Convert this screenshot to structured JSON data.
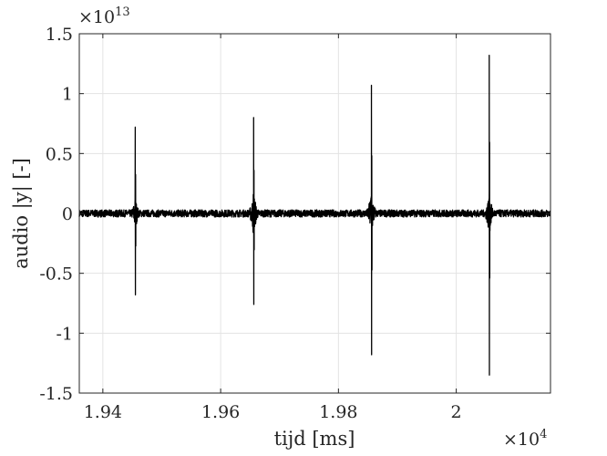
{
  "chart_data": {
    "type": "line",
    "title": "",
    "xlabel": "tijd [ms]",
    "ylabel": "audio |y| [-]",
    "xlim": [
      19360,
      20160
    ],
    "ylim": [
      -15000000000000.0,
      15000000000000.0
    ],
    "x_ticks": [
      19400,
      19600,
      19800,
      20000
    ],
    "x_tick_labels": [
      "1.94",
      "1.96",
      "1.98",
      "2"
    ],
    "y_ticks": [
      -15000000000000.0,
      -10000000000000.0,
      -5000000000000.0,
      0,
      5000000000000.0,
      10000000000000.0,
      15000000000000.0
    ],
    "y_tick_labels": [
      "-1.5",
      "-1",
      "-0.5",
      "0",
      "0.5",
      "1",
      "1.5"
    ],
    "x_multiplier": {
      "base": "×10",
      "exponent": "4"
    },
    "y_multiplier": {
      "base": "×10",
      "exponent": "13"
    },
    "grid": true,
    "line_color": "#000000",
    "series": [
      {
        "bursts": [
          {
            "x": 19455,
            "peak_pos": 7200000000000.0,
            "peak_neg": -6800000000000.0,
            "cluster": 1500000000000.0
          },
          {
            "x": 19656,
            "peak_pos": 8000000000000.0,
            "peak_neg": -7600000000000.0,
            "cluster": 2200000000000.0
          },
          {
            "x": 19856,
            "peak_pos": 10700000000000.0,
            "peak_neg": -11800000000000.0,
            "cluster": 2300000000000.0
          },
          {
            "x": 20056,
            "peak_pos": 13200000000000.0,
            "peak_neg": -13500000000000.0,
            "cluster": 2000000000000.0
          }
        ],
        "baseline_noise": 300000000000.0
      }
    ]
  }
}
